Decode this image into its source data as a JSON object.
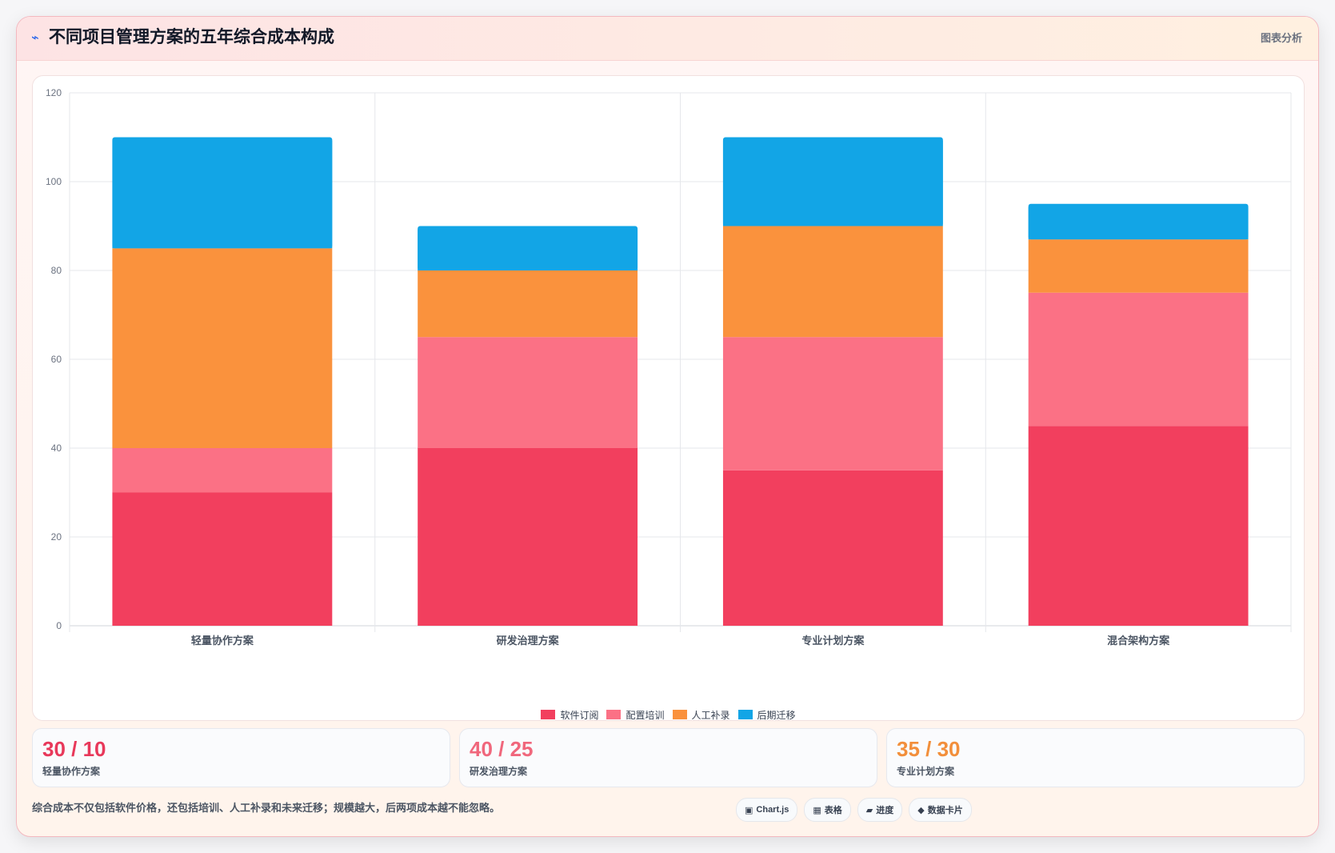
{
  "header": {
    "icon": "lightning-icon",
    "title": "不同项目管理方案的五年综合成本构成",
    "tag": "图表分析"
  },
  "chart_data": {
    "type": "bar",
    "stacked": true,
    "categories": [
      "轻量协作方案",
      "研发治理方案",
      "专业计划方案",
      "混合架构方案"
    ],
    "series": [
      {
        "name": "软件订阅",
        "color": "#f23f5e",
        "values": [
          30,
          40,
          35,
          45
        ]
      },
      {
        "name": "配置培训",
        "color": "#fb7185",
        "values": [
          10,
          25,
          30,
          30
        ]
      },
      {
        "name": "人工补录",
        "color": "#fa923d",
        "values": [
          45,
          15,
          25,
          12
        ]
      },
      {
        "name": "后期迁移",
        "color": "#12a5e6",
        "values": [
          25,
          10,
          20,
          8
        ]
      }
    ],
    "ylim": [
      0,
      120
    ],
    "yticks": [
      0,
      20,
      40,
      60,
      80,
      100,
      120
    ],
    "grid": true,
    "legend": "bottom"
  },
  "stats": [
    {
      "value": "30 / 10",
      "label": "轻量协作方案",
      "color": "#e8385a"
    },
    {
      "value": "40 / 25",
      "label": "研发治理方案",
      "color": "#f0677c"
    },
    {
      "value": "35 / 30",
      "label": "专业计划方案",
      "color": "#f28f3b"
    }
  ],
  "footer": {
    "note": "综合成本不仅包括软件价格，还包括培训、人工补录和未来迁移；规模越大，后两项成本越不能忽略。",
    "chips": [
      {
        "icon": "▣",
        "label": "Chart.js"
      },
      {
        "icon": "▦",
        "label": "表格"
      },
      {
        "icon": "▰",
        "label": "进度"
      },
      {
        "icon": "◆",
        "label": "数据卡片"
      }
    ]
  }
}
